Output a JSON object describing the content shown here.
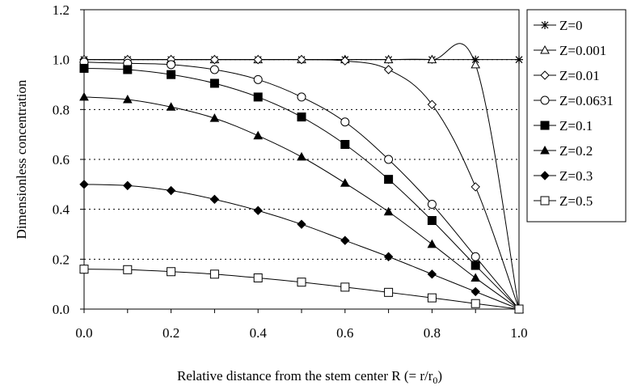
{
  "chart_data": {
    "type": "line",
    "title": "",
    "xlabel": "Relative distance from the stem center R (= r/r",
    "xlabel_sub": "0",
    "xlabel_end": ")",
    "ylabel": "Dimensionless concentration",
    "xlim": [
      0,
      1.0
    ],
    "ylim": [
      0,
      1.2
    ],
    "x_ticks": [
      "0.0",
      "0.2",
      "0.4",
      "0.6",
      "0.8",
      "1.0"
    ],
    "y_ticks": [
      "0.0",
      "0.2",
      "0.4",
      "0.6",
      "0.8",
      "1.0",
      "1.2"
    ],
    "grid": "horizontal dotted",
    "legend_position": "right",
    "x": [
      0.0,
      0.1,
      0.2,
      0.3,
      0.4,
      0.5,
      0.6,
      0.7,
      0.8,
      0.9,
      1.0
    ],
    "series": [
      {
        "name": "Z=0",
        "marker": "star",
        "values": [
          1.0,
          1.0,
          1.0,
          1.0,
          1.0,
          1.0,
          1.0,
          1.0,
          1.0,
          1.0,
          1.0
        ]
      },
      {
        "name": "Z=0.001",
        "marker": "triangle-open",
        "values": [
          1.0,
          1.0,
          1.0,
          1.0,
          1.0,
          1.0,
          1.0,
          1.0,
          1.0,
          0.98,
          0.0
        ]
      },
      {
        "name": "Z=0.01",
        "marker": "diamond-open",
        "values": [
          1.0,
          1.0,
          1.0,
          1.0,
          1.0,
          1.0,
          0.995,
          0.96,
          0.82,
          0.49,
          0.0
        ]
      },
      {
        "name": "Z=0.0631",
        "marker": "circle-open",
        "values": [
          0.99,
          0.985,
          0.98,
          0.96,
          0.92,
          0.85,
          0.75,
          0.6,
          0.42,
          0.21,
          0.0
        ]
      },
      {
        "name": "Z=0.1",
        "marker": "square-filled",
        "values": [
          0.965,
          0.96,
          0.94,
          0.905,
          0.85,
          0.77,
          0.66,
          0.52,
          0.355,
          0.175,
          0.0
        ]
      },
      {
        "name": "Z=0.2",
        "marker": "triangle-filled",
        "values": [
          0.85,
          0.84,
          0.81,
          0.765,
          0.695,
          0.61,
          0.505,
          0.39,
          0.26,
          0.125,
          0.0
        ]
      },
      {
        "name": "Z=0.3",
        "marker": "diamond-filled",
        "values": [
          0.5,
          0.495,
          0.475,
          0.44,
          0.395,
          0.34,
          0.275,
          0.21,
          0.14,
          0.07,
          0.0
        ]
      },
      {
        "name": "Z=0.5",
        "marker": "square-open",
        "values": [
          0.16,
          0.158,
          0.15,
          0.14,
          0.125,
          0.108,
          0.088,
          0.067,
          0.045,
          0.022,
          0.0
        ]
      }
    ]
  }
}
